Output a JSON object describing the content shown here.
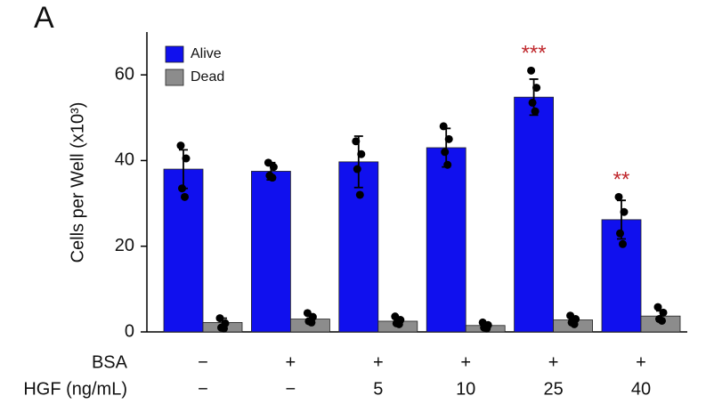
{
  "chart_data": {
    "type": "bar",
    "panel_label": "A",
    "y_label": "Cells per Well (x10³)",
    "categories": [
      null,
      null,
      null,
      null,
      null,
      null
    ],
    "ylim": [
      0,
      70
    ],
    "yticks": [
      0,
      20,
      40,
      60
    ],
    "legend": "top-left",
    "series": [
      {
        "name": "Alive",
        "color": "#1010ee",
        "values": [
          38,
          37.5,
          39.7,
          43,
          54.8,
          26.2
        ],
        "errors": [
          4.5,
          2,
          6,
          4.5,
          4.2,
          4.5
        ],
        "points": [
          [
            43.5,
            40.5,
            33.5,
            31.5
          ],
          [
            39.5,
            38.5,
            36.5,
            36
          ],
          [
            44.5,
            41.5,
            38,
            32
          ],
          [
            48,
            45,
            42,
            39
          ],
          [
            61,
            57,
            53.5,
            51.5
          ],
          [
            31.5,
            28,
            23,
            20.5
          ]
        ]
      },
      {
        "name": "Dead",
        "color": "#8c8c8c",
        "values": [
          2.2,
          3.0,
          2.5,
          1.5,
          2.8,
          3.7
        ],
        "errors": [
          1,
          1,
          0.8,
          0.5,
          0.8,
          1.2
        ],
        "points": [
          [
            3.2,
            2.0,
            1.0,
            0.8
          ],
          [
            4.4,
            3.5,
            2.5,
            2.2
          ],
          [
            3.6,
            2.8,
            2.0,
            1.8
          ],
          [
            2.2,
            1.6,
            1.0,
            0.8
          ],
          [
            3.8,
            3.0,
            2.2,
            1.8
          ],
          [
            5.8,
            4.5,
            3.0,
            2.6
          ]
        ]
      }
    ],
    "annotations": [
      {
        "text": "***",
        "index": 4,
        "color": "#c0282d"
      },
      {
        "text": "**",
        "index": 5,
        "color": "#c0282d"
      }
    ],
    "conditions": [
      {
        "label": "BSA",
        "values": [
          "−",
          "+",
          "+",
          "+",
          "+",
          "+"
        ]
      },
      {
        "label": "HGF (ng/mL)",
        "values": [
          "−",
          "−",
          "5",
          "10",
          "25",
          "40"
        ]
      }
    ]
  }
}
